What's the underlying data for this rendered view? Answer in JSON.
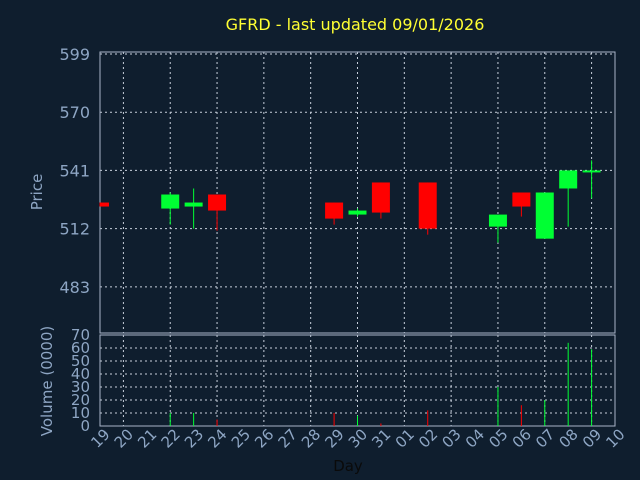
{
  "chart_data": [
    {
      "type": "candlestick",
      "title": "GFRD - last updated 09/01/2026",
      "ylabel": "Price",
      "ylim": [
        460,
        600
      ],
      "yticks": [
        599,
        570,
        541,
        512,
        483
      ],
      "grid": true,
      "up_color": "#00ff33",
      "down_color": "#ff0000",
      "categories": [
        "19",
        "20",
        "21",
        "22",
        "23",
        "24",
        "25",
        "26",
        "27",
        "28",
        "29",
        "30",
        "31",
        "01",
        "02",
        "03",
        "04",
        "05",
        "06",
        "07",
        "08",
        "09",
        "10"
      ],
      "candles": [
        {
          "x": "19",
          "open": 525,
          "high": 525,
          "low": 523,
          "close": 523
        },
        {
          "x": "22",
          "open": 522,
          "high": 530,
          "low": 514,
          "close": 529
        },
        {
          "x": "23",
          "open": 523,
          "high": 532,
          "low": 512,
          "close": 525
        },
        {
          "x": "24",
          "open": 529,
          "high": 529,
          "low": 511,
          "close": 521
        },
        {
          "x": "29",
          "open": 525,
          "high": 525,
          "low": 514,
          "close": 517
        },
        {
          "x": "30",
          "open": 519,
          "high": 522,
          "low": 518,
          "close": 521
        },
        {
          "x": "31",
          "open": 535,
          "high": 535,
          "low": 517,
          "close": 520
        },
        {
          "x": "02",
          "open": 535,
          "high": 535,
          "low": 509,
          "close": 512
        },
        {
          "x": "05",
          "open": 513,
          "high": 518,
          "low": 505,
          "close": 519
        },
        {
          "x": "06",
          "open": 530,
          "high": 530,
          "low": 518,
          "close": 523
        },
        {
          "x": "07",
          "open": 507,
          "high": 530,
          "low": 507,
          "close": 530
        },
        {
          "x": "08",
          "open": 532,
          "high": 541,
          "low": 513,
          "close": 541
        },
        {
          "x": "09",
          "open": 540,
          "high": 546,
          "low": 527,
          "close": 541
        }
      ]
    },
    {
      "type": "bar",
      "ylabel": "Volume (0000)",
      "xlabel": "Day",
      "ylim": [
        0,
        70
      ],
      "yticks": [
        0,
        10,
        20,
        30,
        40,
        50,
        60,
        70
      ],
      "grid": true,
      "categories": [
        "19",
        "20",
        "21",
        "22",
        "23",
        "24",
        "25",
        "26",
        "27",
        "28",
        "29",
        "30",
        "31",
        "01",
        "02",
        "03",
        "04",
        "05",
        "06",
        "07",
        "08",
        "09",
        "10"
      ],
      "values": [
        {
          "x": "19",
          "value": 0,
          "color": "#ff0000"
        },
        {
          "x": "22",
          "value": 10,
          "color": "#00ff33"
        },
        {
          "x": "23",
          "value": 10,
          "color": "#00ff33"
        },
        {
          "x": "24",
          "value": 5,
          "color": "#ff0000"
        },
        {
          "x": "29",
          "value": 10,
          "color": "#ff0000"
        },
        {
          "x": "30",
          "value": 8,
          "color": "#00ff33"
        },
        {
          "x": "31",
          "value": 2,
          "color": "#ff0000"
        },
        {
          "x": "02",
          "value": 12,
          "color": "#ff0000"
        },
        {
          "x": "05",
          "value": 30,
          "color": "#00ff33"
        },
        {
          "x": "06",
          "value": 16,
          "color": "#ff0000"
        },
        {
          "x": "07",
          "value": 20,
          "color": "#00ff33"
        },
        {
          "x": "08",
          "value": 64,
          "color": "#00ff33"
        },
        {
          "x": "09",
          "value": 59,
          "color": "#00ff33"
        }
      ]
    }
  ]
}
